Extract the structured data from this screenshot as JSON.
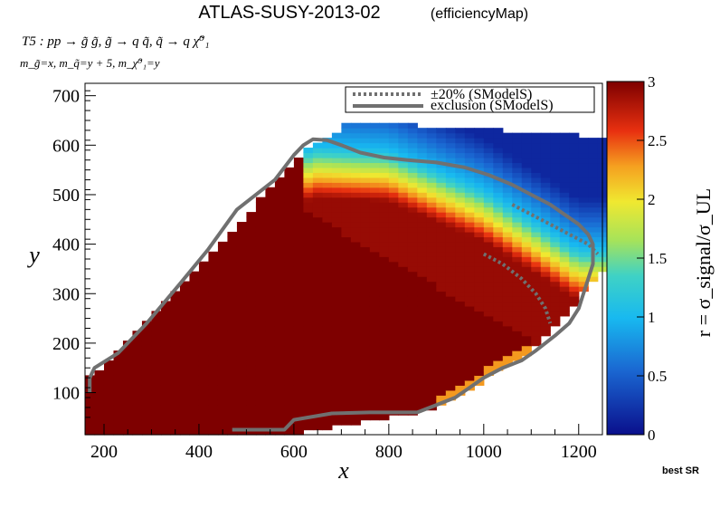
{
  "chart_data": {
    "type": "heatmap",
    "title": "ATLAS-SUSY-2013-02",
    "title_tag": "(efficiencyMap)",
    "process": "T5 : pp → g̃ g̃, g̃ → q q̃, q̃ → q χ̃⁰₁",
    "mass_relation": "m_g̃=x, m_q̃=y + 5, m_χ̃⁰₁=y",
    "xlabel": "x",
    "ylabel": "y",
    "zlabel": "r = σ_signal/σ_UL",
    "xlim": [
      160,
      1250
    ],
    "ylim": [
      15,
      725
    ],
    "zlim": [
      0,
      3
    ],
    "x_ticks": [
      "200",
      "400",
      "600",
      "800",
      "1000",
      "1200"
    ],
    "y_ticks": [
      "100",
      "200",
      "300",
      "400",
      "500",
      "600",
      "700"
    ],
    "z_ticks": [
      "0",
      "0.5",
      "1",
      "1.5",
      "2",
      "2.5",
      "3"
    ],
    "legend": {
      "position": "top-right",
      "entries": [
        {
          "label": "±20% (SModelS)",
          "style": "dotted",
          "color": "#707070"
        },
        {
          "label": "exclusion (SModelS)",
          "style": "solid",
          "color": "#707070"
        }
      ]
    },
    "corner_note": "best SR",
    "cell_size": {
      "dx": 20,
      "dy": 10
    },
    "grid": false,
    "exclusion_contour": [
      [
        470,
        25
      ],
      [
        580,
        25
      ],
      [
        600,
        45
      ],
      [
        680,
        58
      ],
      [
        760,
        60
      ],
      [
        860,
        60
      ],
      [
        900,
        75
      ],
      [
        940,
        90
      ],
      [
        970,
        110
      ],
      [
        1000,
        130
      ],
      [
        1040,
        150
      ],
      [
        1080,
        165
      ],
      [
        1110,
        185
      ],
      [
        1150,
        215
      ],
      [
        1180,
        240
      ],
      [
        1200,
        270
      ],
      [
        1210,
        300
      ],
      [
        1220,
        330
      ],
      [
        1230,
        360
      ],
      [
        1230,
        400
      ],
      [
        1220,
        420
      ],
      [
        1200,
        440
      ],
      [
        1170,
        460
      ],
      [
        1140,
        480
      ],
      [
        1100,
        500
      ],
      [
        1060,
        520
      ],
      [
        1010,
        540
      ],
      [
        960,
        555
      ],
      [
        900,
        565
      ],
      [
        840,
        570
      ],
      [
        790,
        575
      ],
      [
        740,
        585
      ],
      [
        700,
        600
      ],
      [
        670,
        610
      ],
      [
        640,
        612
      ],
      [
        620,
        600
      ],
      [
        600,
        580
      ],
      [
        560,
        530
      ],
      [
        480,
        470
      ],
      [
        420,
        390
      ],
      [
        360,
        320
      ],
      [
        290,
        240
      ],
      [
        230,
        180
      ],
      [
        180,
        150
      ],
      [
        170,
        130
      ],
      [
        170,
        100
      ]
    ],
    "band_upper": [
      [
        1060,
        480
      ],
      [
        1100,
        460
      ],
      [
        1140,
        440
      ],
      [
        1180,
        420
      ],
      [
        1220,
        400
      ],
      [
        1240,
        380
      ]
    ],
    "band_lower": [
      [
        1000,
        380
      ],
      [
        1040,
        360
      ],
      [
        1080,
        330
      ],
      [
        1110,
        300
      ],
      [
        1130,
        270
      ],
      [
        1140,
        240
      ]
    ]
  }
}
